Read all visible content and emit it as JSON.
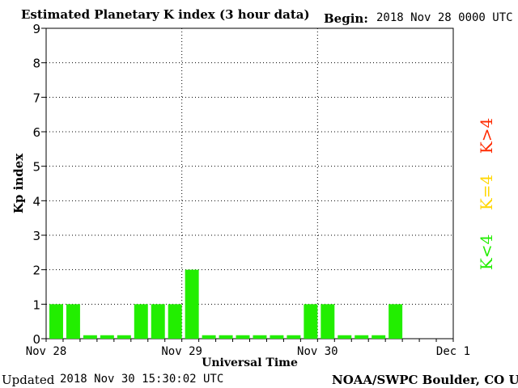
{
  "header": {
    "title": "Estimated Planetary K index (3 hour data)",
    "begin_label": "Begin:",
    "begin_value": "2018 Nov 28 0000 UTC"
  },
  "footer": {
    "updated_label": "Updated",
    "updated_value": "2018 Nov 30 15:30:02 UTC",
    "credit": "NOAA/SWPC Boulder, CO USA"
  },
  "legend": [
    {
      "label": "K>4",
      "color": "#ff2a00"
    },
    {
      "label": "K=4",
      "color": "#ffd700"
    },
    {
      "label": "K<4",
      "color": "#22ee00"
    }
  ],
  "chart_data": {
    "type": "bar",
    "title": "Estimated Planetary K index (3 hour data)",
    "xlabel": "Universal Time",
    "ylabel": "Kp index",
    "ylim": [
      0,
      9
    ],
    "yticks": [
      "0",
      "1",
      "2",
      "3",
      "4",
      "5",
      "6",
      "7",
      "8",
      "9"
    ],
    "xticks": [
      "Nov 28",
      "Nov 29",
      "Nov 30",
      "Dec 1"
    ],
    "grid": true,
    "bar_color": "#22ee00",
    "series": [
      {
        "values": [
          1,
          1,
          0.1,
          0.1,
          0.1,
          1,
          1,
          1,
          2,
          0.1,
          0.1,
          0.1,
          0.1,
          0.1,
          0.1,
          1,
          1,
          0.1,
          0.1,
          0.1,
          1
        ]
      }
    ]
  }
}
